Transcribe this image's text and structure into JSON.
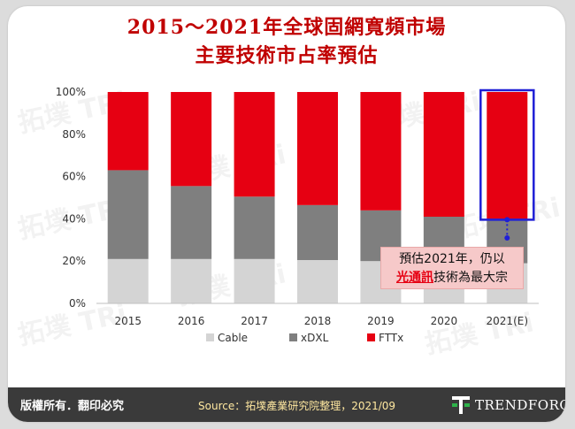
{
  "title_line1": "2015～2021年全球固網寬頻市場",
  "title_line2": "主要技術市占率預估",
  "chart_data": {
    "type": "bar",
    "stacked": true,
    "categories": [
      "2015",
      "2016",
      "2017",
      "2018",
      "2019",
      "2020",
      "2021(E)"
    ],
    "series": [
      {
        "name": "Cable",
        "color": "#d4d4d4",
        "values": [
          21,
          21,
          21,
          20.5,
          20,
          20,
          19
        ]
      },
      {
        "name": "xDXL",
        "color": "#7f7f7f",
        "values": [
          42,
          34.5,
          29.5,
          26,
          24,
          21,
          21
        ]
      },
      {
        "name": "FTTx",
        "color": "#e60012",
        "values": [
          37,
          44.5,
          49.5,
          53.5,
          56,
          59,
          60
        ]
      }
    ],
    "yticks": [
      "0%",
      "20%",
      "40%",
      "60%",
      "80%",
      "100%"
    ],
    "ylim": [
      0,
      100
    ],
    "legend_position": "bottom",
    "highlight_category": "2021(E)",
    "highlight_color": "#1f1fd6"
  },
  "callout": {
    "line1": "預估2021年，仍以",
    "line2_underlined": "光通訊",
    "line2_rest": "技術為最大宗"
  },
  "footer": {
    "rights": "版權所有．翻印必究",
    "source": "Source：拓墣產業研究院整理，2021/09",
    "logo": "TRENDFORCE"
  },
  "watermark_text": "拓墣 TRi"
}
